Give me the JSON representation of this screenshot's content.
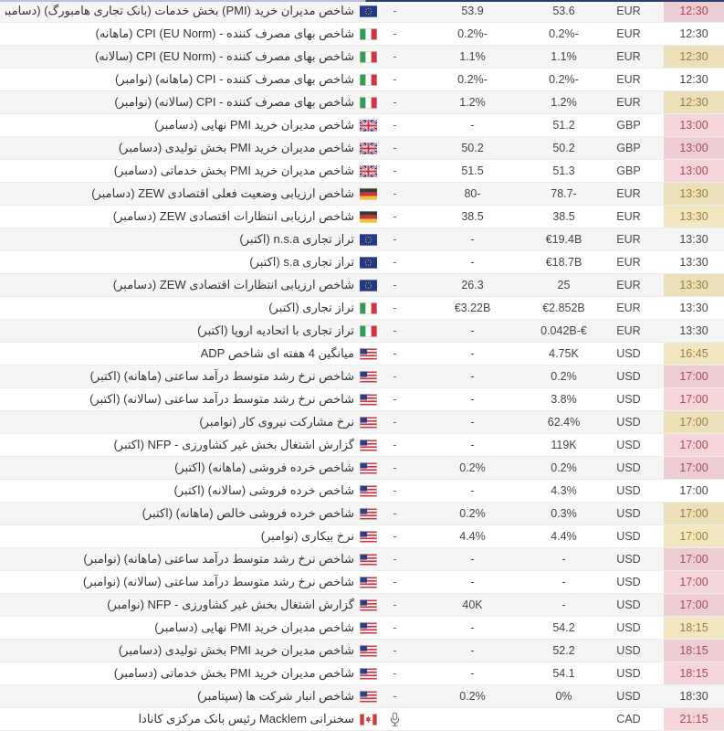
{
  "calendar": {
    "columns_rtl_order": [
      "time",
      "currency",
      "previous",
      "forecast",
      "actual",
      "event"
    ],
    "colors": {
      "importance_high_bg": "#f4d5da",
      "importance_high_text": "#a84a58",
      "importance_medium_bg": "#f3e7c1",
      "importance_medium_text": "#9d7e33",
      "row_alt_bg": "#f5f5f6",
      "row_border": "#ededee",
      "top_strip_left": "#b6c1dc",
      "top_strip_right": "#2d3d6e"
    },
    "rows": [
      {
        "time": "12:30",
        "currency": "EUR",
        "previous": "53.6",
        "forecast": "53.9",
        "actual": "-",
        "importance": "high",
        "flag": "eu",
        "event": "شاخص مدیران خرید (PMI) بخش خدمات (بانک تجاری هامبورگ) (دسامبر)"
      },
      {
        "time": "12:30",
        "currency": "EUR",
        "previous": "0.2%-",
        "forecast": "0.2%-",
        "actual": "-",
        "importance": "none",
        "flag": "it",
        "event": "شاخص بهای مصرف کننده - CPI (EU Norm) (ماهانه)"
      },
      {
        "time": "12:30",
        "currency": "EUR",
        "previous": "1.1%",
        "forecast": "1.1%",
        "actual": "-",
        "importance": "medium",
        "flag": "it",
        "event": "شاخص بهای مصرف کننده - CPI (EU Norm) (سالانه)"
      },
      {
        "time": "12:30",
        "currency": "EUR",
        "previous": "0.2%-",
        "forecast": "0.2%-",
        "actual": "-",
        "importance": "none",
        "flag": "it",
        "event": "شاخص بهای مصرف کننده - CPI (ماهانه) (نوامبر)"
      },
      {
        "time": "12:30",
        "currency": "EUR",
        "previous": "1.2%",
        "forecast": "1.2%",
        "actual": "-",
        "importance": "medium",
        "flag": "it",
        "event": "شاخص بهای مصرف کننده - CPI (سالانه) (نوامبر)"
      },
      {
        "time": "13:00",
        "currency": "GBP",
        "previous": "51.2",
        "forecast": "-",
        "actual": "-",
        "importance": "high",
        "flag": "uk",
        "event": "شاخص مدیران خرید PMI نهایی (دسامبر)"
      },
      {
        "time": "13:00",
        "currency": "GBP",
        "previous": "50.2",
        "forecast": "50.2",
        "actual": "-",
        "importance": "high",
        "flag": "uk",
        "event": "شاخص مدیران خرید PMI بخش تولیدی (دسامبر)"
      },
      {
        "time": "13:00",
        "currency": "GBP",
        "previous": "51.3",
        "forecast": "51.5",
        "actual": "-",
        "importance": "high",
        "flag": "uk",
        "event": "شاخص مدیران خرید PMI بخش خدماتی (دسامبر)"
      },
      {
        "time": "13:30",
        "currency": "EUR",
        "previous": "78.7-",
        "forecast": "80-",
        "actual": "-",
        "importance": "medium",
        "flag": "de",
        "event": "شاخص ارزیابی وضعیت فعلی اقتصادی ZEW (دسامبر)"
      },
      {
        "time": "13:30",
        "currency": "EUR",
        "previous": "38.5",
        "forecast": "38.5",
        "actual": "-",
        "importance": "medium",
        "flag": "de",
        "event": "شاخص ارزیابی انتظارات اقتصادی ZEW (دسامبر)"
      },
      {
        "time": "13:30",
        "currency": "EUR",
        "previous": "€19.4B",
        "forecast": "-",
        "actual": "-",
        "importance": "none",
        "flag": "eu",
        "event": "تراز تجاری n.s.a (اکتبر)"
      },
      {
        "time": "13:30",
        "currency": "EUR",
        "previous": "€18.7B",
        "forecast": "-",
        "actual": "-",
        "importance": "none",
        "flag": "eu",
        "event": "تراز تجاری s.a (اکتبر)"
      },
      {
        "time": "13:30",
        "currency": "EUR",
        "previous": "25",
        "forecast": "26.3",
        "actual": "-",
        "importance": "medium",
        "flag": "eu",
        "event": "شاخص ارزیابی انتظارات اقتصادی ZEW (دسامبر)"
      },
      {
        "time": "13:30",
        "currency": "EUR",
        "previous": "€2.852B",
        "forecast": "€3.22B",
        "actual": "-",
        "importance": "none",
        "flag": "it",
        "event": "تراز تجاری (اکتبر)"
      },
      {
        "time": "13:30",
        "currency": "EUR",
        "previous": "0.042B-€",
        "forecast": "-",
        "actual": "-",
        "importance": "none",
        "flag": "it",
        "event": "تراز تجاری با اتحادیه اروپا (اکتبر)"
      },
      {
        "time": "16:45",
        "currency": "USD",
        "previous": "4.75K",
        "forecast": "-",
        "actual": "-",
        "importance": "medium",
        "flag": "us",
        "event": "میانگین 4 هفته ای شاخص ADP"
      },
      {
        "time": "17:00",
        "currency": "USD",
        "previous": "0.2%",
        "forecast": "-",
        "actual": "-",
        "importance": "high",
        "flag": "us",
        "event": "شاخص نرخ رشد متوسط درآمد ساعتی (ماهانه) (اکتبر)"
      },
      {
        "time": "17:00",
        "currency": "USD",
        "previous": "3.8%",
        "forecast": "-",
        "actual": "-",
        "importance": "high",
        "flag": "us",
        "event": "شاخص نرخ رشد متوسط درآمد ساعتی (سالانه) (اکتبر)"
      },
      {
        "time": "17:00",
        "currency": "USD",
        "previous": "62.4%",
        "forecast": "-",
        "actual": "-",
        "importance": "medium",
        "flag": "us",
        "event": "نرخ مشارکت نیروی کار (نوامبر)"
      },
      {
        "time": "17:00",
        "currency": "USD",
        "previous": "119K",
        "forecast": "-",
        "actual": "-",
        "importance": "high",
        "flag": "us",
        "event": "گزارش اشتغال بخش غیر کشاورزی - NFP (اکتبر)"
      },
      {
        "time": "17:00",
        "currency": "USD",
        "previous": "0.2%",
        "forecast": "0.2%",
        "actual": "-",
        "importance": "high",
        "flag": "us",
        "event": "شاخص خرده فروشی (ماهانه) (اکتبر)"
      },
      {
        "time": "17:00",
        "currency": "USD",
        "previous": "4.3%",
        "forecast": "-",
        "actual": "-",
        "importance": "none",
        "flag": "us",
        "event": "شاخص خرده فروشی (سالانه) (اکتبر)"
      },
      {
        "time": "17:00",
        "currency": "USD",
        "previous": "0.3%",
        "forecast": "0.2%",
        "actual": "-",
        "importance": "medium",
        "flag": "us",
        "event": "شاخص خرده فروشی خالص (ماهانه) (اکتبر)"
      },
      {
        "time": "17:00",
        "currency": "USD",
        "previous": "4.4%",
        "forecast": "4.4%",
        "actual": "-",
        "importance": "medium",
        "flag": "us",
        "event": "نرخ بیکاری (نوامبر)"
      },
      {
        "time": "17:00",
        "currency": "USD",
        "previous": "-",
        "forecast": "-",
        "actual": "-",
        "importance": "high",
        "flag": "us",
        "event": "شاخص نرخ رشد متوسط درآمد ساعتی (ماهانه) (نوامبر)"
      },
      {
        "time": "17:00",
        "currency": "USD",
        "previous": "-",
        "forecast": "-",
        "actual": "-",
        "importance": "high",
        "flag": "us",
        "event": "شاخص نرخ رشد متوسط درآمد ساعتی (سالانه) (نوامبر)"
      },
      {
        "time": "17:00",
        "currency": "USD",
        "previous": "-",
        "forecast": "40K",
        "actual": "-",
        "importance": "high",
        "flag": "us",
        "event": "گزارش اشتغال بخش غیر کشاورزی - NFP (نوامبر)"
      },
      {
        "time": "18:15",
        "currency": "USD",
        "previous": "54.2",
        "forecast": "-",
        "actual": "-",
        "importance": "medium",
        "flag": "us",
        "event": "شاخص مدیران خرید PMI نهایی (دسامبر)"
      },
      {
        "time": "18:15",
        "currency": "USD",
        "previous": "52.2",
        "forecast": "-",
        "actual": "-",
        "importance": "high",
        "flag": "us",
        "event": "شاخص مدیران خرید PMI بخش تولیدی (دسامبر)"
      },
      {
        "time": "18:15",
        "currency": "USD",
        "previous": "54.1",
        "forecast": "-",
        "actual": "-",
        "importance": "high",
        "flag": "us",
        "event": "شاخص مدیران خرید PMI بخش خدماتی (دسامبر)"
      },
      {
        "time": "18:30",
        "currency": "USD",
        "previous": "0%",
        "forecast": "0.2%",
        "actual": "-",
        "importance": "none",
        "flag": "us",
        "event": "شاخص انبار شرکت ها (سپتامبر)"
      },
      {
        "time": "21:15",
        "currency": "CAD",
        "previous": "",
        "forecast": "",
        "actual": "",
        "icon": "microphone",
        "importance": "high",
        "flag": "ca",
        "event": "سخنرانی Macklem رئیس بانک مرکزی کانادا"
      }
    ]
  }
}
